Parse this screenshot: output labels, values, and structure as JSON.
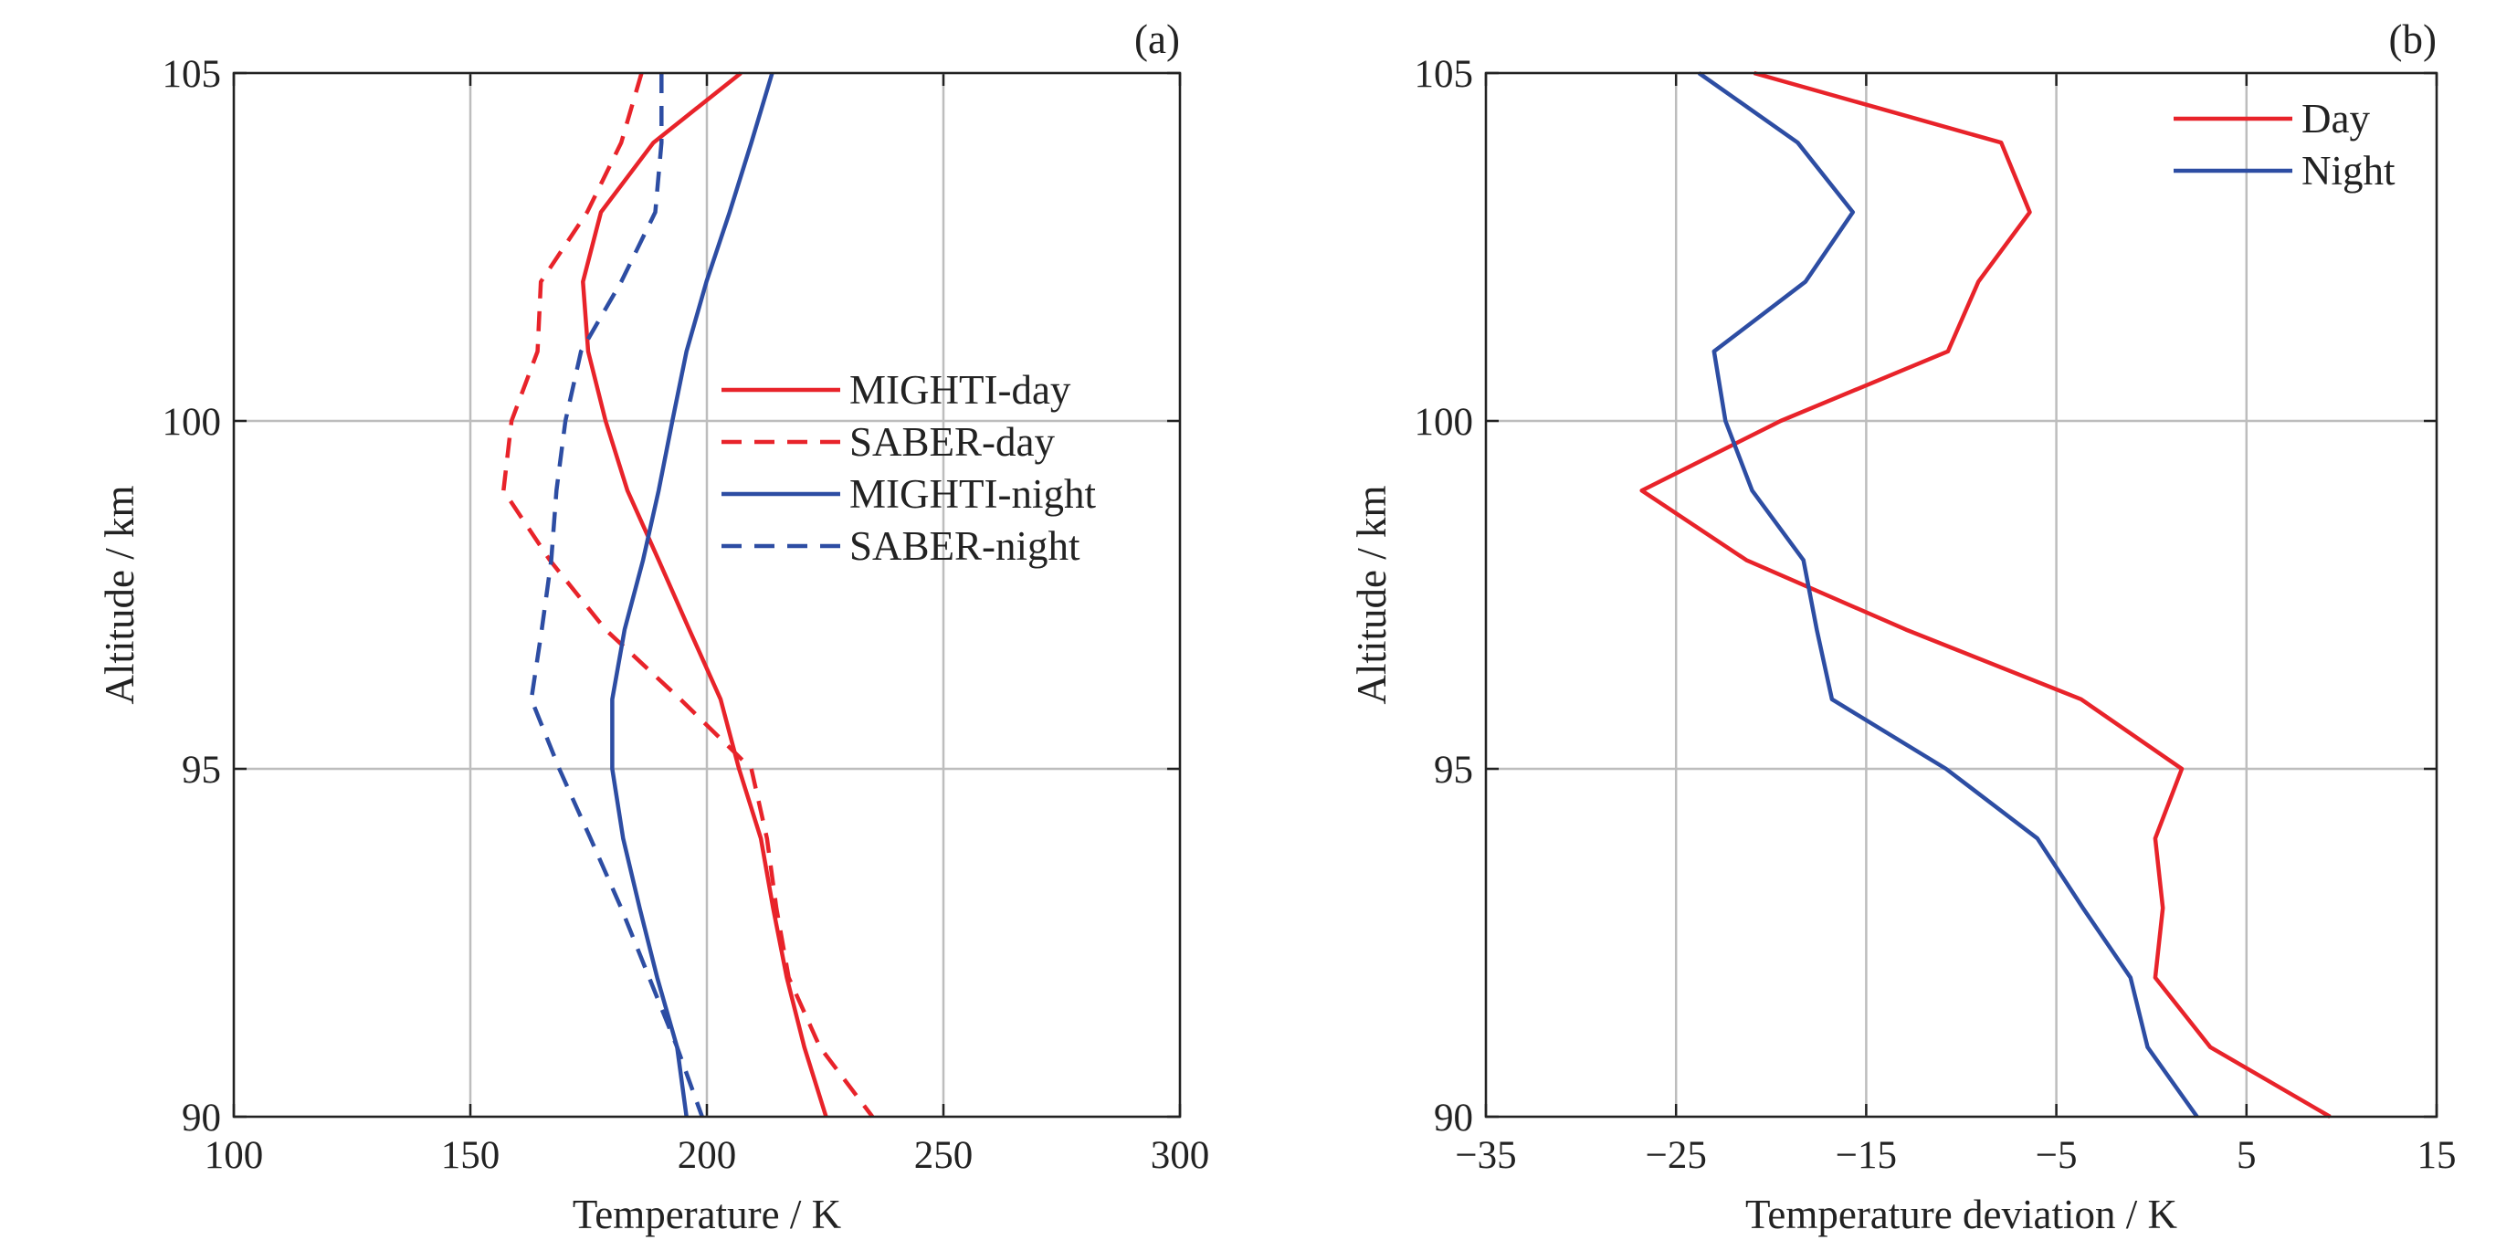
{
  "chart_data": [
    {
      "type": "line",
      "panel_label": "(a)",
      "xlabel": "Temperature / K",
      "ylabel": "Altitude / km",
      "xlim": [
        100,
        300
      ],
      "ylim": [
        90,
        105
      ],
      "xticks": [
        100,
        150,
        200,
        250,
        300
      ],
      "yticks": [
        90,
        95,
        100,
        105
      ],
      "grid": true,
      "legend_position": "center-right",
      "y": [
        105,
        104,
        103,
        102,
        101,
        100,
        99,
        98,
        97,
        96,
        95,
        94,
        93,
        92,
        91,
        90
      ],
      "series": [
        {
          "name": "MIGHTI-day",
          "color": "#e8232a",
          "dash": false,
          "values": [
            207.2,
            188.7,
            177.6,
            173.8,
            174.9,
            178.6,
            183.2,
            189.8,
            196.3,
            202.9,
            206.8,
            211.4,
            214.0,
            216.9,
            220.6,
            225.2
          ]
        },
        {
          "name": "SABER-day",
          "color": "#e8232a",
          "dash": true,
          "values": [
            186.2,
            181.9,
            174.7,
            164.9,
            164.2,
            158.7,
            157.0,
            166.8,
            178.6,
            194.4,
            209.4,
            212.7,
            214.7,
            217.3,
            223.9,
            235.0
          ]
        },
        {
          "name": "MIGHTI-night",
          "color": "#2d4da3",
          "dash": false,
          "values": [
            213.8,
            209.4,
            204.8,
            199.9,
            195.7,
            192.7,
            189.8,
            186.5,
            182.6,
            180.0,
            180.0,
            182.3,
            185.8,
            189.5,
            193.7,
            195.7
          ]
        },
        {
          "name": "SABER-night",
          "color": "#2d4da3",
          "dash": true,
          "values": [
            190.4,
            190.4,
            189.1,
            181.9,
            173.4,
            170.1,
            168.2,
            167.1,
            165.1,
            162.9,
            168.8,
            175.4,
            181.9,
            187.8,
            193.7,
            199.0
          ]
        }
      ]
    },
    {
      "type": "line",
      "panel_label": "(b)",
      "xlabel": "Temperature deviation / K",
      "ylabel": "Altitude / km",
      "xlim": [
        -35,
        15
      ],
      "ylim": [
        90,
        105
      ],
      "xticks": [
        -35,
        -25,
        -15,
        -5,
        5,
        15
      ],
      "xtick_labels": [
        "−35",
        "−25",
        "−15",
        "−5",
        "5",
        "15"
      ],
      "yticks": [
        90,
        95,
        100,
        105
      ],
      "grid": true,
      "legend_position": "top-right",
      "y": [
        105,
        104,
        103,
        102,
        101,
        100,
        99,
        98,
        97,
        96,
        95,
        94,
        93,
        92,
        91,
        90
      ],
      "series": [
        {
          "name": "Day",
          "color": "#e8232a",
          "dash": false,
          "values": [
            -20.9,
            -7.9,
            -6.4,
            -9.1,
            -10.7,
            -19.5,
            -26.8,
            -21.3,
            -12.9,
            -3.7,
            1.6,
            0.2,
            0.6,
            0.2,
            3.1,
            9.4
          ]
        },
        {
          "name": "Night",
          "color": "#2d4da3",
          "dash": false,
          "values": [
            -23.8,
            -18.6,
            -15.7,
            -18.2,
            -23.0,
            -22.4,
            -21.0,
            -18.3,
            -17.6,
            -16.8,
            -10.8,
            -6.0,
            -3.6,
            -1.1,
            -0.2,
            2.4
          ]
        }
      ]
    }
  ]
}
